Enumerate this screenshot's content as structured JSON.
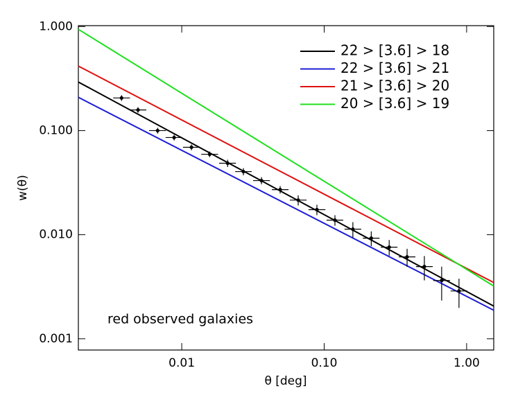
{
  "chart_data": {
    "type": "line",
    "xlabel": "θ  [deg]",
    "ylabel": "w(θ)",
    "annotation": "red observed galaxies",
    "xlog": true,
    "ylog": true,
    "xlim": [
      0.00188,
      1.55
    ],
    "ylim": [
      0.00078,
      1.02
    ],
    "xticks": [
      {
        "value": 0.01,
        "label": "0.01"
      },
      {
        "value": 0.1,
        "label": "0.10"
      },
      {
        "value": 1,
        "label": "1.00"
      }
    ],
    "yticks": [
      {
        "value": 0.001,
        "label": "0.001"
      },
      {
        "value": 0.01,
        "label": "0.010"
      },
      {
        "value": 0.1,
        "label": "0.100"
      },
      {
        "value": 1,
        "label": "1.000"
      }
    ],
    "legend": "upper right",
    "series": [
      {
        "name": "22 > [3.6] > 18",
        "color": "#000000",
        "x": [
          0.00188,
          1.55
        ],
        "values": [
          0.293,
          0.00206
        ]
      },
      {
        "name": "22 > [3.6] > 21",
        "color": "#1c1cd6",
        "x": [
          0.00188,
          1.55
        ],
        "values": [
          0.209,
          0.00188
        ]
      },
      {
        "name": "21 > [3.6] > 20",
        "color": "#e01010",
        "x": [
          0.00188,
          1.55
        ],
        "values": [
          0.417,
          0.00347
        ]
      },
      {
        "name": "20 > [3.6] > 19",
        "color": "#1ee01e",
        "x": [
          0.00188,
          1.55
        ],
        "values": [
          0.94,
          0.00321
        ]
      }
    ],
    "points": {
      "color": "#000000",
      "x": [
        0.00378,
        0.00493,
        0.00677,
        0.00884,
        0.0117,
        0.0157,
        0.021,
        0.0271,
        0.0363,
        0.0491,
        0.0657,
        0.0889,
        0.119,
        0.159,
        0.214,
        0.286,
        0.382,
        0.505,
        0.668,
        0.884
      ],
      "x_low": [
        0.0033,
        0.0043,
        0.0059,
        0.0077,
        0.0102,
        0.0137,
        0.0183,
        0.0237,
        0.0317,
        0.0429,
        0.0574,
        0.0776,
        0.104,
        0.139,
        0.187,
        0.25,
        0.334,
        0.441,
        0.583,
        0.772
      ],
      "x_high": [
        0.00433,
        0.00564,
        0.00775,
        0.0101,
        0.0134,
        0.018,
        0.024,
        0.031,
        0.0416,
        0.0562,
        0.0752,
        0.102,
        0.136,
        0.182,
        0.245,
        0.327,
        0.437,
        0.578,
        0.765,
        1.012
      ],
      "values": [
        0.206,
        0.158,
        0.1,
        0.0858,
        0.0692,
        0.0593,
        0.0486,
        0.0404,
        0.0331,
        0.0271,
        0.0215,
        0.0174,
        0.0138,
        0.0113,
        0.00926,
        0.00759,
        0.00612,
        0.00494,
        0.00363,
        0.00288
      ],
      "yerr": [
        0.013,
        0.01,
        0.0063,
        0.0054,
        0.0044,
        0.0037,
        0.0039,
        0.0032,
        0.0026,
        0.0022,
        0.0024,
        0.002,
        0.0016,
        0.0019,
        0.0015,
        0.0013,
        0.0012,
        0.0013,
        0.0013,
        0.0009
      ]
    }
  }
}
